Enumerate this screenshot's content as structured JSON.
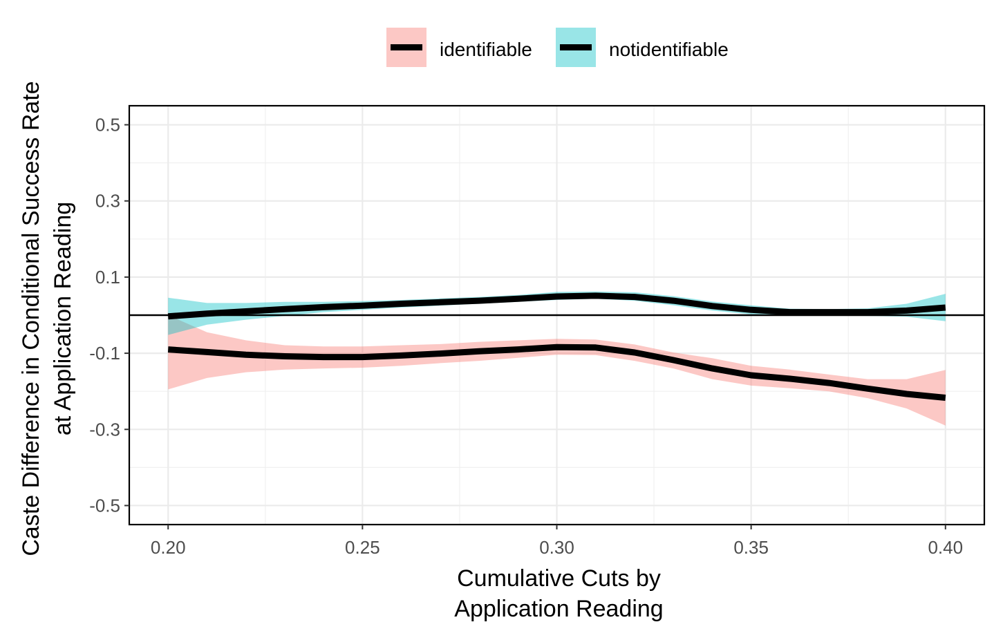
{
  "chart_data": {
    "type": "line",
    "title": "",
    "xlabel": [
      "Cumulative Cuts by",
      "Application Reading"
    ],
    "ylabel": [
      "Caste Difference in Conditional Success Rate",
      "at Application Reading"
    ],
    "xlim": [
      0.19,
      0.41
    ],
    "ylim": [
      -0.55,
      0.55
    ],
    "x_ticks": [
      0.2,
      0.25,
      0.3,
      0.35,
      0.4
    ],
    "x_tick_labels": [
      "0.20",
      "0.25",
      "0.30",
      "0.35",
      "0.40"
    ],
    "y_ticks": [
      0.5,
      0.3,
      0.1,
      -0.1,
      -0.3,
      -0.5
    ],
    "y_tick_labels": [
      "0.5",
      "0.3",
      "0.1",
      "-0.1",
      "-0.3",
      "-0.5"
    ],
    "grid": true,
    "reference_line_y": 0,
    "legend_position": "top",
    "series": [
      {
        "name": "identifiable",
        "fill_color": "#F8766D",
        "line_color": "#000000",
        "x": [
          0.2,
          0.21,
          0.22,
          0.23,
          0.24,
          0.25,
          0.26,
          0.27,
          0.28,
          0.29,
          0.3,
          0.31,
          0.32,
          0.33,
          0.34,
          0.35,
          0.36,
          0.37,
          0.38,
          0.39,
          0.4
        ],
        "y": [
          -0.09,
          -0.097,
          -0.104,
          -0.108,
          -0.11,
          -0.11,
          -0.106,
          -0.101,
          -0.095,
          -0.09,
          -0.084,
          -0.085,
          -0.098,
          -0.118,
          -0.14,
          -0.158,
          -0.167,
          -0.178,
          -0.193,
          -0.207,
          -0.217
        ],
        "lower": [
          -0.195,
          -0.165,
          -0.15,
          -0.143,
          -0.14,
          -0.138,
          -0.133,
          -0.126,
          -0.12,
          -0.112,
          -0.104,
          -0.105,
          -0.12,
          -0.14,
          -0.168,
          -0.185,
          -0.192,
          -0.2,
          -0.218,
          -0.245,
          -0.29
        ],
        "upper": [
          0.0,
          -0.045,
          -0.066,
          -0.079,
          -0.082,
          -0.082,
          -0.079,
          -0.076,
          -0.07,
          -0.066,
          -0.062,
          -0.064,
          -0.077,
          -0.098,
          -0.113,
          -0.133,
          -0.143,
          -0.156,
          -0.168,
          -0.168,
          -0.144
        ]
      },
      {
        "name": "notidentifiable",
        "fill_color": "#00BFC4",
        "line_color": "#000000",
        "x": [
          0.2,
          0.21,
          0.22,
          0.23,
          0.24,
          0.25,
          0.26,
          0.27,
          0.28,
          0.29,
          0.3,
          0.31,
          0.32,
          0.33,
          0.34,
          0.35,
          0.36,
          0.37,
          0.38,
          0.39,
          0.4
        ],
        "y": [
          -0.003,
          0.004,
          0.01,
          0.016,
          0.021,
          0.025,
          0.03,
          0.034,
          0.038,
          0.043,
          0.049,
          0.051,
          0.048,
          0.038,
          0.024,
          0.014,
          0.008,
          0.008,
          0.008,
          0.012,
          0.02
        ],
        "lower": [
          -0.052,
          -0.025,
          -0.012,
          -0.002,
          0.008,
          0.014,
          0.02,
          0.025,
          0.03,
          0.035,
          0.04,
          0.043,
          0.038,
          0.026,
          0.012,
          0.002,
          -0.001,
          -0.001,
          -0.002,
          -0.004,
          -0.016
        ],
        "upper": [
          0.046,
          0.032,
          0.032,
          0.035,
          0.035,
          0.037,
          0.04,
          0.044,
          0.048,
          0.053,
          0.061,
          0.062,
          0.06,
          0.05,
          0.036,
          0.026,
          0.017,
          0.016,
          0.018,
          0.03,
          0.056
        ]
      }
    ]
  }
}
